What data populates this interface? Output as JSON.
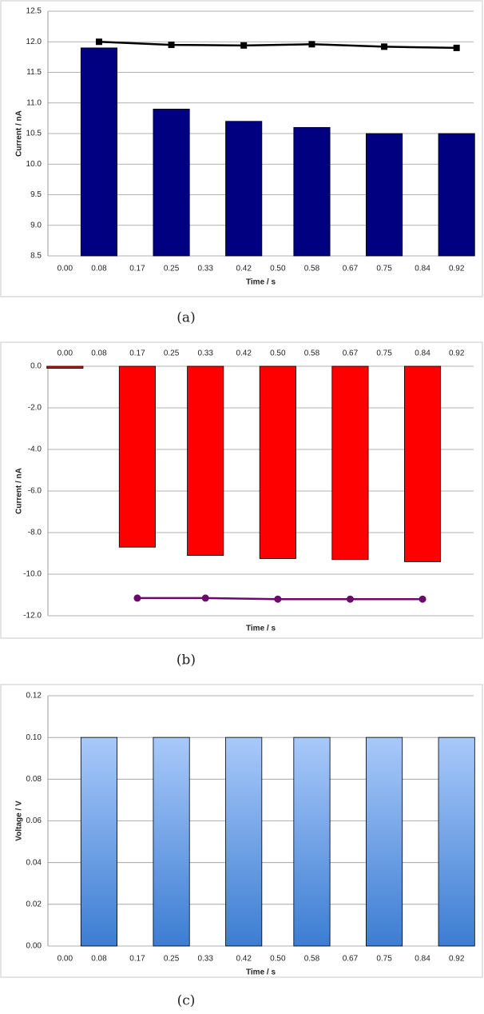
{
  "chart_data": [
    {
      "type": "bar",
      "caption": "(a)",
      "xlabel": "Time / s",
      "ylabel": "Current / nA",
      "xlim": [
        -0.04,
        0.96
      ],
      "xticks": [
        {
          "value": 0,
          "label": "0.00"
        },
        0.08,
        0.17,
        0.25,
        0.33,
        0.42,
        {
          "value": 0.5,
          "label": "0.50"
        },
        0.58,
        0.67,
        0.75,
        0.84,
        0.92
      ],
      "ylim": [
        8.5,
        12.5
      ],
      "yticks": [
        8.5,
        {
          "value": 9,
          "label": "9.0"
        },
        9.5,
        {
          "value": 10,
          "label": "10.0"
        },
        10.5,
        {
          "value": 11,
          "label": "11.0"
        },
        11.5,
        {
          "value": 12,
          "label": "12.0"
        },
        12.5
      ],
      "grid": true,
      "xtick_position": "bottom",
      "series": [
        {
          "type": "bar",
          "color": "#000080",
          "x": [
            0.08,
            0.25,
            0.42,
            0.58,
            0.75,
            0.92
          ],
          "values": [
            11.9,
            10.9,
            10.7,
            10.6,
            10.5,
            10.5
          ]
        },
        {
          "type": "line",
          "color": "#000000",
          "marker": "square",
          "x": [
            0.08,
            0.25,
            0.42,
            0.58,
            0.75,
            0.92
          ],
          "values": [
            12.0,
            11.95,
            11.94,
            11.96,
            11.92,
            11.9
          ]
        }
      ]
    },
    {
      "type": "bar",
      "caption": "(b)",
      "xlabel": "Time / s",
      "ylabel": "Current / nA",
      "xlim": [
        -0.04,
        0.96
      ],
      "xticks": [
        {
          "value": 0,
          "label": "0.00"
        },
        0.08,
        0.17,
        0.25,
        0.33,
        0.42,
        {
          "value": 0.5,
          "label": "0.50"
        },
        0.58,
        0.67,
        0.75,
        0.84,
        0.92
      ],
      "ylim": [
        -12,
        0
      ],
      "yticks": [
        {
          "value": -12,
          "label": "-12.0"
        },
        {
          "value": -10,
          "label": "-10.0"
        },
        {
          "value": -8,
          "label": "-8.0"
        },
        {
          "value": -6,
          "label": "-6.0"
        },
        {
          "value": -4,
          "label": "-4.0"
        },
        {
          "value": -2,
          "label": "-2.0"
        },
        {
          "value": 0,
          "label": "0.0"
        }
      ],
      "grid": true,
      "xtick_position": "top",
      "series": [
        {
          "type": "bar",
          "color": "#ff0000",
          "x": [
            0,
            0.17,
            0.33,
            0.5,
            0.67,
            0.84
          ],
          "values": [
            -0.1,
            -8.7,
            -9.1,
            -9.25,
            -9.3,
            -9.4
          ]
        },
        {
          "type": "line",
          "color": "#6b0a6b",
          "marker": "circle",
          "x": [
            0.17,
            0.33,
            0.5,
            0.67,
            0.84
          ],
          "values": [
            -11.15,
            -11.15,
            -11.2,
            -11.2,
            -11.2
          ]
        }
      ]
    },
    {
      "type": "bar",
      "caption": "(c)",
      "xlabel": "Time / s",
      "ylabel": "Voltage / V",
      "xlim": [
        -0.04,
        0.96
      ],
      "xticks": [
        {
          "value": 0,
          "label": "0.00"
        },
        0.08,
        0.17,
        0.25,
        0.33,
        0.42,
        {
          "value": 0.5,
          "label": "0.50"
        },
        0.58,
        0.67,
        0.75,
        0.84,
        0.92
      ],
      "ylim": [
        0,
        0.12
      ],
      "yticks": [
        {
          "value": 0,
          "label": "0.00"
        },
        0.02,
        0.04,
        0.06,
        0.08,
        {
          "value": 0.1,
          "label": "0.10"
        },
        0.12
      ],
      "grid": true,
      "xtick_position": "bottom",
      "series": [
        {
          "type": "bar",
          "color": [
            "#a9c9fa",
            "#3c7dd2"
          ],
          "x": [
            0.08,
            0.25,
            0.42,
            0.58,
            0.75,
            0.92
          ],
          "values": [
            0.1,
            0.1,
            0.1,
            0.1,
            0.1,
            0.1
          ]
        }
      ]
    }
  ]
}
